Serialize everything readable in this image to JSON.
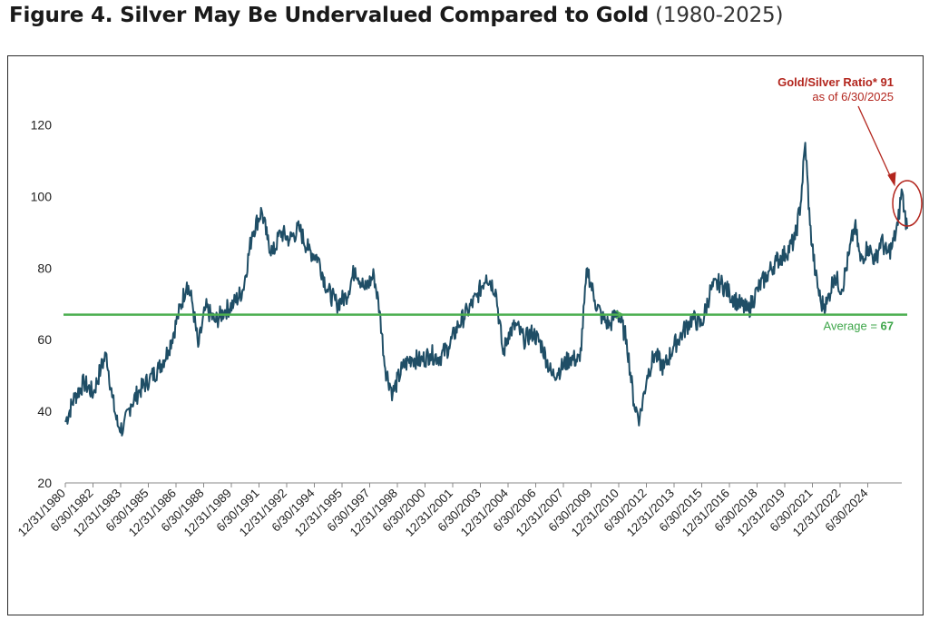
{
  "figure": {
    "title": "Figure 4. Silver May Be Undervalued Compared to Gold",
    "range": "(1980-2025)"
  },
  "colors": {
    "series": "#1f4e66",
    "average": "#4caf50",
    "annotation": "#b3261e",
    "average_text": "#3ea64a"
  },
  "chart_data": {
    "type": "line",
    "title": "Figure 4. Silver May Be Undervalued Compared to Gold (1980-2025)",
    "xlabel": "",
    "ylabel": "",
    "ylim": [
      20,
      130
    ],
    "yticks": [
      20,
      40,
      60,
      80,
      100,
      120
    ],
    "grid": false,
    "legend": "none",
    "x_ticks": [
      "12/31/1980",
      "6/30/1982",
      "12/31/1983",
      "6/30/1985",
      "12/31/1986",
      "6/30/1988",
      "12/31/1989",
      "6/30/1991",
      "12/31/1992",
      "6/30/1994",
      "12/31/1995",
      "6/30/1997",
      "12/31/1998",
      "6/30/2000",
      "12/31/2001",
      "6/30/2003",
      "12/31/2004",
      "6/30/2006",
      "12/31/2007",
      "6/30/2009",
      "12/31/2010",
      "6/30/2012",
      "12/31/2013",
      "6/30/2015",
      "12/31/2016",
      "6/30/2018",
      "12/31/2019",
      "6/30/2021",
      "12/31/2022",
      "6/30/2024"
    ],
    "x": [
      1980.5,
      1981.0,
      1981.5,
      1982.0,
      1982.4,
      1982.7,
      1983.0,
      1983.3,
      1983.6,
      1984.0,
      1984.5,
      1985.0,
      1985.5,
      1986.0,
      1986.5,
      1987.0,
      1987.3,
      1987.6,
      1988.0,
      1988.5,
      1989.0,
      1989.5,
      1990.0,
      1990.5,
      1991.0,
      1991.3,
      1991.6,
      1992.0,
      1992.5,
      1993.0,
      1993.5,
      1994.0,
      1994.5,
      1995.0,
      1995.5,
      1996.0,
      1996.5,
      1997.0,
      1997.3,
      1997.6,
      1998.0,
      1998.5,
      1999.0,
      1999.5,
      2000.0,
      2000.5,
      2001.0,
      2001.5,
      2002.0,
      2002.5,
      2003.0,
      2003.5,
      2003.9,
      2004.2,
      2004.6,
      2005.0,
      2005.5,
      2006.0,
      2006.5,
      2007.0,
      2007.5,
      2008.0,
      2008.4,
      2008.8,
      2009.2,
      2009.6,
      2010.0,
      2010.5,
      2010.9,
      2011.2,
      2011.6,
      2012.0,
      2012.5,
      2013.0,
      2013.5,
      2014.0,
      2014.5,
      2015.0,
      2015.5,
      2016.0,
      2016.5,
      2017.0,
      2017.5,
      2018.0,
      2018.5,
      2019.0,
      2019.5,
      2019.8,
      2020.05,
      2020.3,
      2020.6,
      2020.9,
      2021.2,
      2021.6,
      2022.0,
      2022.4,
      2022.7,
      2023.0,
      2023.4,
      2023.8,
      2024.1,
      2024.4,
      2024.7,
      2025.0,
      2025.2,
      2025.35,
      2025.5
    ],
    "series": [
      {
        "values": [
          37,
          44,
          48,
          45,
          52,
          56,
          44,
          36,
          35,
          42,
          46,
          49,
          52,
          57,
          66,
          76,
          70,
          58,
          69,
          65,
          68,
          70,
          74,
          90,
          96,
          88,
          84,
          90,
          88,
          91,
          85,
          83,
          74,
          70,
          72,
          80,
          74,
          78,
          68,
          52,
          45,
          52,
          55,
          54,
          56,
          55,
          58,
          64,
          68,
          72,
          78,
          74,
          56,
          62,
          64,
          60,
          62,
          58,
          50,
          52,
          55,
          54,
          80,
          71,
          66,
          64,
          68,
          60,
          42,
          38,
          50,
          56,
          52,
          58,
          62,
          66,
          64,
          74,
          76,
          73,
          70,
          68,
          74,
          78,
          82,
          84,
          88,
          98,
          115,
          92,
          78,
          70,
          70,
          78,
          74,
          84,
          92,
          82,
          86,
          82,
          88,
          84,
          86,
          92,
          102,
          96,
          91
        ]
      }
    ],
    "average_line": {
      "value": 67,
      "label_prefix": "Average = ",
      "label_value": "67"
    },
    "annotation": {
      "line1": "Gold/Silver Ratio* 91",
      "line2": "as of 6/30/2025"
    }
  }
}
